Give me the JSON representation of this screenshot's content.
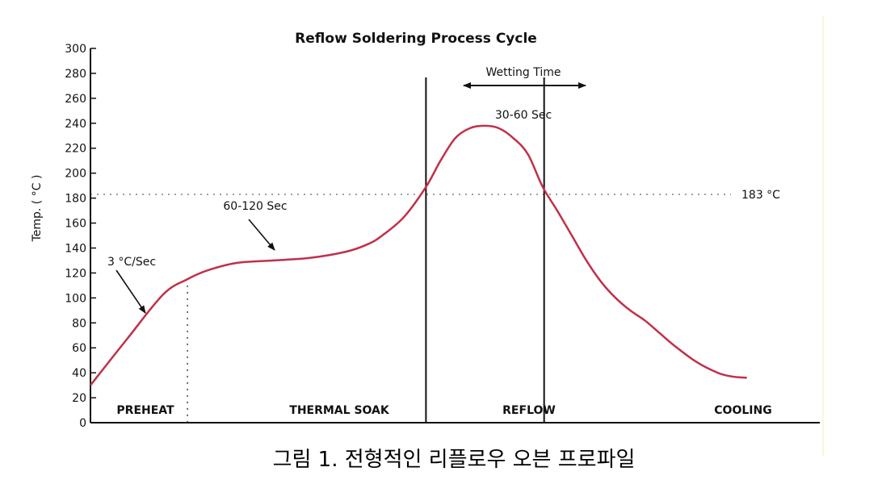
{
  "chart_data": {
    "type": "line",
    "title": "Reflow Soldering Process Cycle",
    "ylabel": "Temp. ( °C )",
    "xlabel": "",
    "ylim": [
      0,
      300
    ],
    "yticks": [
      0,
      20,
      40,
      60,
      80,
      100,
      120,
      140,
      160,
      180,
      200,
      220,
      240,
      260,
      280,
      300
    ],
    "xlim": [
      0,
      1000
    ],
    "grid": false,
    "series": [
      {
        "color": "#c0304a",
        "x": [
          0,
          50,
          100,
          133,
          160,
          200,
          250,
          300,
          350,
          380,
          400,
          430,
          460,
          480,
          500,
          520,
          540,
          560,
          580,
          600,
          620,
          640,
          660,
          680,
          700,
          720,
          740,
          760,
          780,
          800,
          830,
          860,
          880,
          900
        ],
        "y": [
          30,
          67,
          103,
          115,
          122,
          128,
          130,
          132,
          137,
          143,
          150,
          165,
          189,
          210,
          228,
          236,
          238,
          236,
          228,
          215,
          189,
          170,
          150,
          130,
          113,
          100,
          90,
          82,
          72,
          62,
          49,
          40,
          37,
          36
        ]
      }
    ],
    "reference_line": {
      "value": 183,
      "label": "183 °C"
    },
    "phase_boundaries": [
      133,
      460,
      622
    ],
    "phases": [
      "PREHEAT",
      "THERMAL SOAK",
      "REFLOW",
      "COOLING"
    ],
    "annotations": [
      {
        "text": "3 °C/Sec"
      },
      {
        "text": "60-120 Sec"
      },
      {
        "text": "Wetting Time"
      },
      {
        "text": "30-60 Sec"
      }
    ]
  },
  "caption": "그림 1. 전형적인 리플로우 오븐 프로파일"
}
